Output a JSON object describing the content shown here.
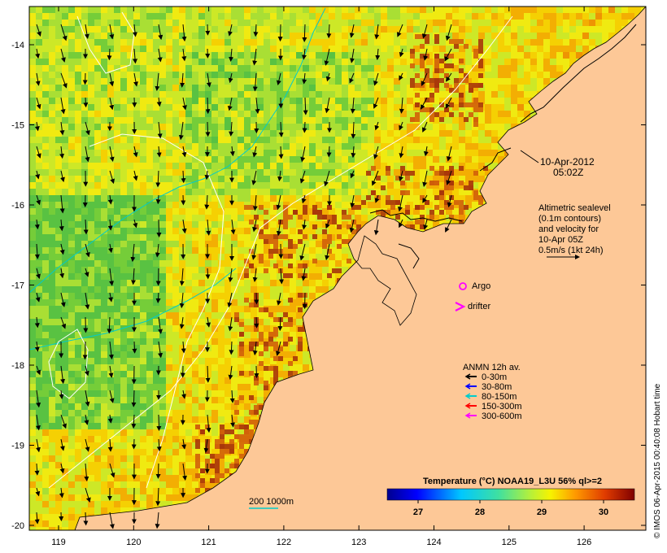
{
  "map": {
    "date_label_line1": "10-Apr-2012",
    "date_label_line2": "05:02Z",
    "altimetry_note": [
      "Altimetric sealevel",
      "(0.1m contours)",
      "and velocity for",
      "10-Apr 05Z",
      "0.5m/s (1kt 24h)"
    ],
    "argo_label": "Argo",
    "drifter_label": "drifter",
    "legend_title": "ANMN 12h av.",
    "legend_items": [
      {
        "label": "0-30m",
        "color": "#000000"
      },
      {
        "label": "30-80m",
        "color": "#0000ff"
      },
      {
        "label": "80-150m",
        "color": "#00cccc"
      },
      {
        "label": "150-300m",
        "color": "#ff0000"
      },
      {
        "label": "300-600m",
        "color": "#ff00ff"
      }
    ],
    "isobath_label": "200  1000m",
    "colorbar_title": "Temperature (°C) NOAA19_L3U 56% ql>=2",
    "colorbar_ticks": [
      "27",
      "28",
      "29",
      "30"
    ],
    "colorbar_range": [
      26.5,
      30.5
    ],
    "credit": "© IMOS 06-Apr-2015 00:40:08 Hobart time",
    "lat_ticks": [
      "-14",
      "-15",
      "-16",
      "-17",
      "-18",
      "-19",
      "-20"
    ],
    "lon_ticks": [
      "119",
      "120",
      "121",
      "122",
      "123",
      "124",
      "125",
      "126"
    ],
    "colors": {
      "land": "#fdc897",
      "sst_low": "#00008f",
      "sst_high": "#800000",
      "argo": "#ff00ff",
      "drifter": "#ff00ff",
      "isobath_200": "#00cccc",
      "isobath_1000": "#ffffff"
    }
  }
}
